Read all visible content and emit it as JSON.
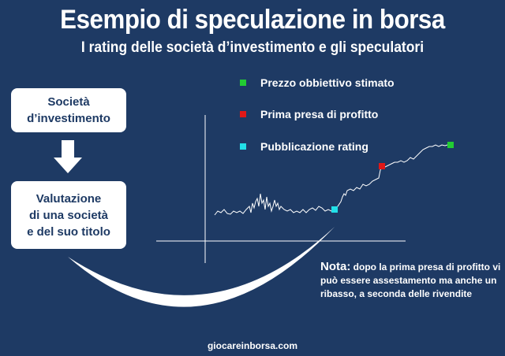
{
  "title": "Esempio di speculazione in borsa",
  "subtitle": "I rating delle società d’investimento e gli speculatori",
  "flow": {
    "box1": "Società\nd’investimento",
    "box2": "Valutazione\ndi una società\ne del suo titolo"
  },
  "legend": [
    {
      "label": "Prezzo obbiettivo stimato",
      "color": "#22cc33"
    },
    {
      "label": "Prima presa di profitto",
      "color": "#e01818"
    },
    {
      "label": "Pubblicazione rating",
      "color": "#22e0e8"
    }
  ],
  "note": {
    "label": "Nota:",
    "text": " dopo la prima presa di profitto vi può essere assestamento ma anche un ribasso, a seconda delle rivendite"
  },
  "footer": "giocareinborsa.com",
  "colors": {
    "background": "#1e3a64",
    "box": "#ffffff",
    "box_text": "#1e3a64",
    "line": "#ffffff"
  }
}
